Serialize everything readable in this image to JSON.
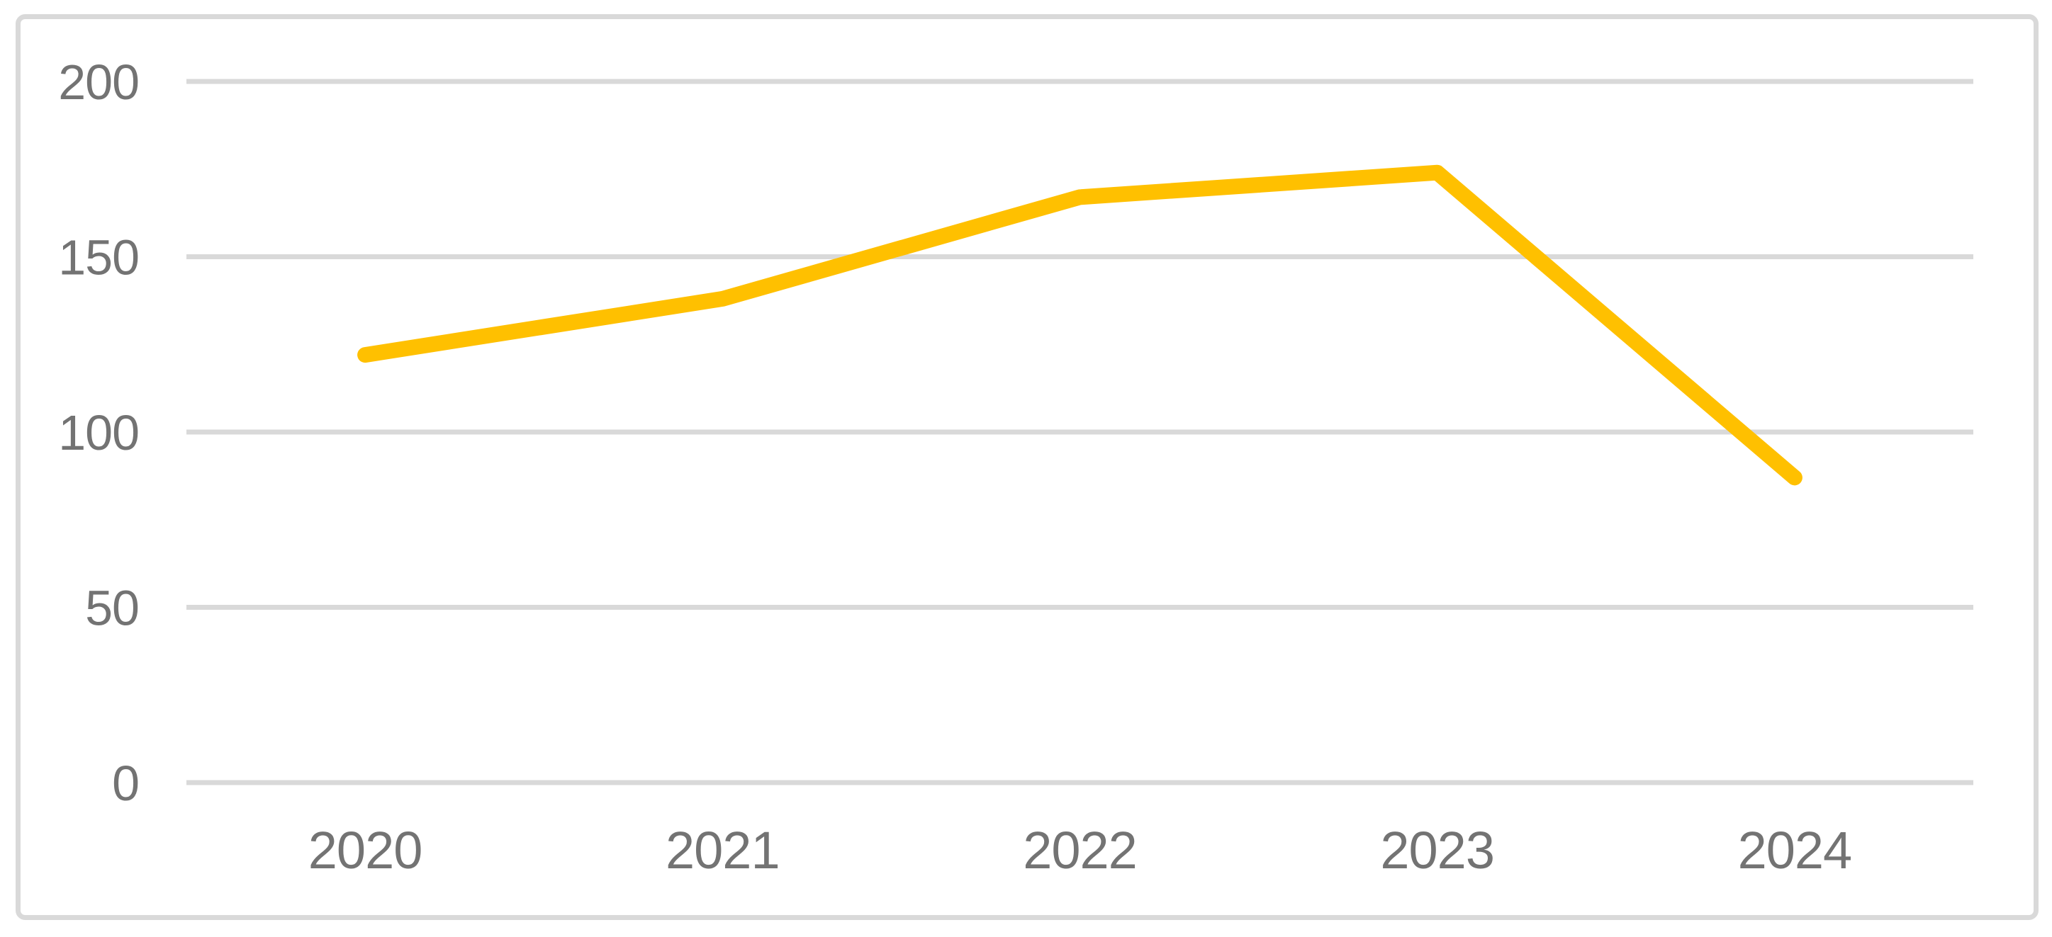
{
  "chart_data": {
    "type": "line",
    "categories": [
      "2020",
      "2021",
      "2022",
      "2023",
      "2024"
    ],
    "series": [
      {
        "name": "series-1",
        "values": [
          122,
          138,
          167,
          174,
          87
        ]
      }
    ],
    "title": "",
    "xlabel": "",
    "ylabel": "",
    "ylim": [
      0,
      200
    ],
    "yticks": [
      0,
      50,
      100,
      150,
      200
    ],
    "grid": true,
    "legend": false,
    "legend_position": "none",
    "colors": {
      "line": "#ffc000",
      "gridline": "#d9d9d9",
      "frame_border": "#d9d9d9",
      "tick_label": "#737373",
      "background": "#ffffff"
    }
  }
}
